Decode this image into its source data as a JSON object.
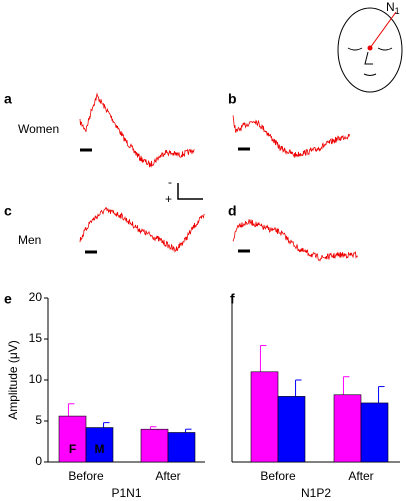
{
  "annotations": {
    "electrode": {
      "text": "N",
      "subscript": "1"
    },
    "row_women": "Women",
    "row_men": "Men",
    "scale_minus": "-",
    "scale_plus": "+"
  },
  "panel_labels": [
    "a",
    "b",
    "c",
    "d",
    "e",
    "f"
  ],
  "chart_data": [
    {
      "type": "bar",
      "y_label": "Amplitude (μV)",
      "x_label": "P1N1",
      "categories": [
        "Before",
        "After"
      ],
      "legend": "in-bars",
      "series": [
        {
          "name": "F",
          "color": "#ff00ff",
          "values": [
            5.6,
            4.0
          ],
          "errors": [
            1.5,
            0.3
          ]
        },
        {
          "name": "M",
          "color": "#0000ff",
          "values": [
            4.2,
            3.6
          ],
          "errors": [
            0.6,
            0.4
          ]
        }
      ],
      "ylim": [
        0,
        20
      ],
      "yticks": [
        0,
        5,
        10,
        15,
        20
      ]
    },
    {
      "type": "bar",
      "x_label": "N1P2",
      "categories": [
        "Before",
        "After"
      ],
      "legend": "none",
      "series": [
        {
          "color": "#ff00ff",
          "values": [
            11.0,
            8.2
          ],
          "errors": [
            3.2,
            2.2
          ]
        },
        {
          "color": "#0000ff",
          "values": [
            8.0,
            7.2
          ],
          "errors": [
            2.0,
            2.0
          ]
        }
      ],
      "ylim": [
        0,
        20
      ]
    }
  ]
}
